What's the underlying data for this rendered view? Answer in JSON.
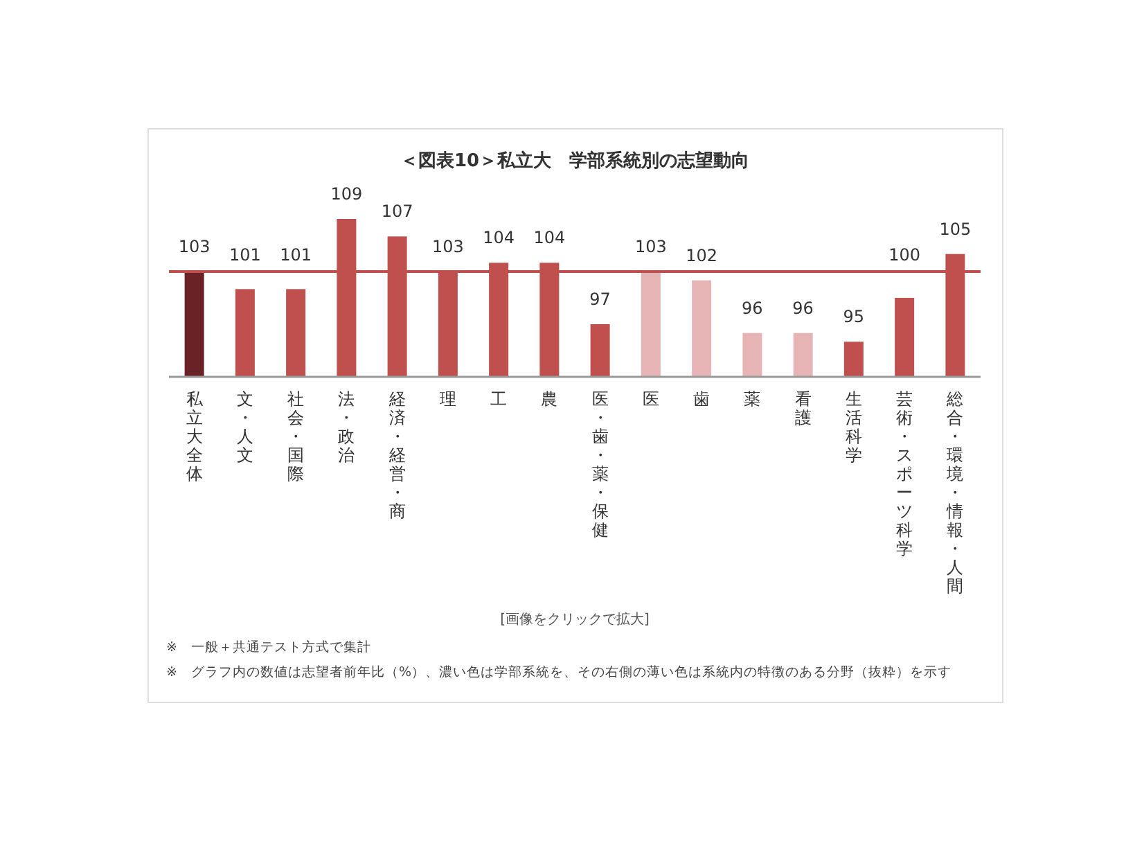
{
  "chart_data": {
    "type": "bar",
    "title": "＜図表10＞私立大　学部系統別の志望動向",
    "categories": [
      "私立大全体",
      "文・人文",
      "社会・国際",
      "法・政治",
      "経済・経営・商",
      "理",
      "工",
      "農",
      "医・歯・薬・保健",
      "医",
      "歯",
      "薬",
      "看護",
      "生活科学",
      "芸術・スポーツ科学",
      "総合・環境・情報・人間"
    ],
    "values": [
      103,
      101,
      101,
      109,
      107,
      103,
      104,
      104,
      97,
      103,
      102,
      96,
      96,
      95,
      100,
      105
    ],
    "colors": [
      "#6b2226",
      "#c0504d",
      "#c0504d",
      "#c0504d",
      "#c0504d",
      "#c0504d",
      "#c0504d",
      "#c0504d",
      "#c0504d",
      "#e6b4b4",
      "#e6b4b4",
      "#e6b4b4",
      "#e6b4b4",
      "#c0504d",
      "#c0504d",
      "#c0504d"
    ],
    "ylim": [
      91,
      109
    ],
    "ref_lines": [
      {
        "axis": "y",
        "value": 103,
        "color": "#c0504d"
      }
    ],
    "data_labels": true,
    "annotations": [
      "[画像をクリックで拡大]",
      "※　一般＋共通テスト方式で集計",
      "※　グラフ内の数値は志望者前年比（%）、濃い色は学部系統を、その右側の薄い色は系統内の特徴のある分野（抜粋）を示す"
    ]
  }
}
